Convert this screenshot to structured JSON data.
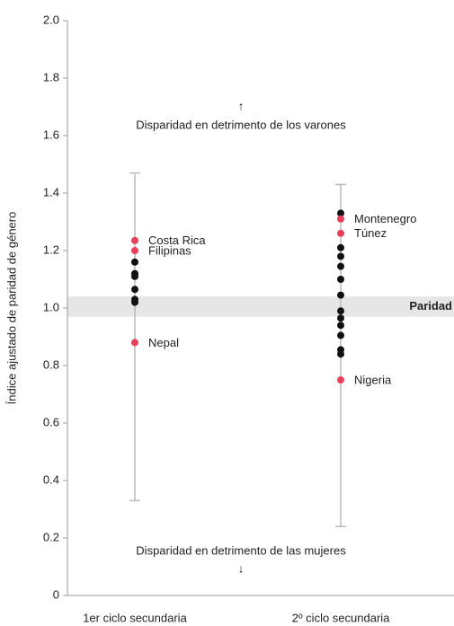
{
  "chart_data": {
    "type": "strip",
    "y_label": "Índice ajustado de paridad de género",
    "ylim": [
      0,
      2
    ],
    "yticks": [
      0,
      0.2,
      0.4,
      0.6,
      0.8,
      {
        "value": 1,
        "label": "1.0"
      },
      1.2,
      1.4,
      1.6,
      1.8,
      {
        "value": 2,
        "label": "2.0"
      }
    ],
    "parity_band": [
      0.97,
      1.04
    ],
    "parity_label": "Paridad",
    "annotations": [
      {
        "arrow": "↑",
        "text": "Disparidad en detrimento de los varones"
      },
      {
        "arrow": "↓",
        "text": "Disparidad en detrimento de las mujeres"
      }
    ],
    "color": "#111111",
    "highlight_color": "#e8405a",
    "range_color": "#bbbbbb",
    "band_color": "#e6e6e6",
    "groups": [
      {
        "category": "1er ciclo secundaria",
        "range": [
          0.33,
          1.47
        ],
        "points": [
          {
            "value": 1.235,
            "label": "Costa Rica"
          },
          {
            "value": 1.2,
            "label": "Filipinas"
          },
          {
            "value": 1.16
          },
          {
            "value": 1.12
          },
          {
            "value": 1.11
          },
          {
            "value": 1.065
          },
          {
            "value": 1.03
          },
          {
            "value": 1.02
          },
          {
            "value": 0.88,
            "label": "Nepal"
          }
        ]
      },
      {
        "category": "2º ciclo secundaria",
        "range": [
          0.24,
          1.43
        ],
        "points": [
          {
            "value": 1.33
          },
          {
            "value": 1.31,
            "label": "Montenegro"
          },
          {
            "value": 1.26,
            "label": "Túnez"
          },
          {
            "value": 1.21
          },
          {
            "value": 1.18
          },
          {
            "value": 1.145
          },
          {
            "value": 1.1
          },
          {
            "value": 1.045
          },
          {
            "value": 0.99
          },
          {
            "value": 0.965
          },
          {
            "value": 0.94
          },
          {
            "value": 0.905
          },
          {
            "value": 0.855
          },
          {
            "value": 0.84
          },
          {
            "value": 0.75,
            "label": "Nigeria"
          }
        ]
      }
    ]
  }
}
